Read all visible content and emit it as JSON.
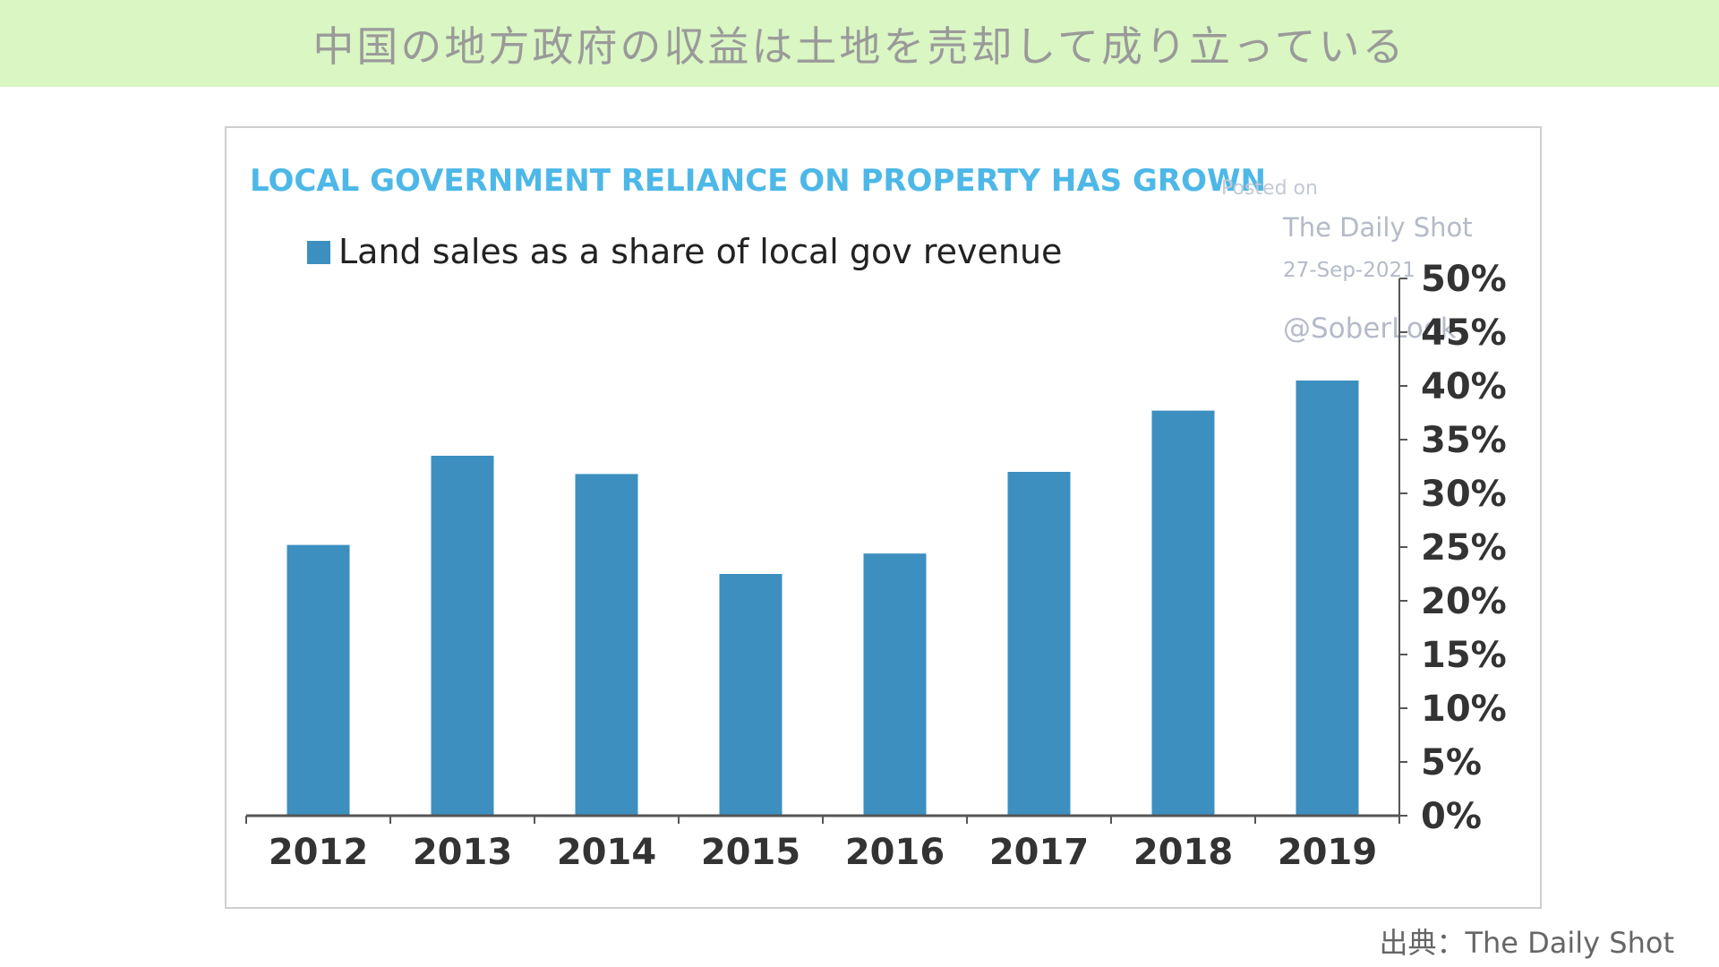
{
  "banner": {
    "title": "中国の地方政府の収益は土地を売却して成り立っている"
  },
  "watermark": {
    "posted": "Posted on",
    "publisher": "The Daily Shot",
    "date": "27-Sep-2021",
    "handle": "@SoberLook"
  },
  "source": "出典：The Daily Shot",
  "colors": {
    "bar": "#3d8fbf",
    "title": "#4db8e8",
    "banner_bg": "#d9f6c3",
    "axis": "#555555"
  },
  "chart_data": {
    "type": "bar",
    "title": "LOCAL GOVERNMENT RELIANCE ON PROPERTY HAS GROWN",
    "categories": [
      "2012",
      "2013",
      "2014",
      "2015",
      "2016",
      "2017",
      "2018",
      "2019"
    ],
    "series": [
      {
        "name": "Land sales as a share of local gov revenue",
        "values": [
          25.2,
          33.5,
          31.8,
          22.5,
          24.4,
          32.0,
          37.7,
          40.5
        ]
      }
    ],
    "ylim": [
      0,
      50
    ],
    "yticks": [
      0,
      5,
      10,
      15,
      20,
      25,
      30,
      35,
      40,
      45,
      50
    ],
    "ytick_labels": [
      "0%",
      "5%",
      "10%",
      "15%",
      "20%",
      "25%",
      "30%",
      "35%",
      "40%",
      "45%",
      "50%"
    ],
    "y_axis_side": "right",
    "legend_position": "top-left",
    "grid": false
  }
}
